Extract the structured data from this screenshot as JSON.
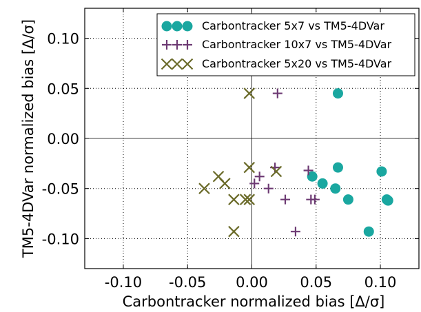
{
  "chart_data": {
    "type": "scatter",
    "xlabel": "Carbontracker normalized bias [Δ/σ]",
    "ylabel": "TM5-4DVar normalized bias [Δ/σ]",
    "xlim": [
      -0.13,
      0.13
    ],
    "ylim": [
      -0.13,
      0.13
    ],
    "xticks": [
      -0.1,
      -0.05,
      0.0,
      0.05,
      0.1
    ],
    "yticks": [
      0.1,
      0.05,
      0.0,
      -0.05,
      -0.1
    ],
    "xtick_labels": [
      "-0.10",
      "-0.05",
      "0.00",
      "0.05",
      "0.10"
    ],
    "ytick_labels": [
      "0.10",
      "0.05",
      "0.00",
      "-0.05",
      "-0.10"
    ],
    "grid": true,
    "zero_lines": true,
    "legend_position": "top-right",
    "series": [
      {
        "name": "Carbontracker  5x7 vs TM5-4DVar",
        "marker": "circle",
        "color": "#1aa7a0",
        "points": [
          [
            0.067,
            0.045
          ],
          [
            0.067,
            -0.029
          ],
          [
            0.101,
            -0.033
          ],
          [
            0.047,
            -0.038
          ],
          [
            0.055,
            -0.045
          ],
          [
            0.065,
            -0.05
          ],
          [
            0.075,
            -0.061
          ],
          [
            0.105,
            -0.061
          ],
          [
            0.106,
            -0.062
          ],
          [
            0.091,
            -0.093
          ]
        ]
      },
      {
        "name": "Carbontracker 10x7 vs TM5-4DVar",
        "marker": "plus",
        "color": "#6d3a73",
        "points": [
          [
            0.02,
            0.045
          ],
          [
            0.018,
            -0.029
          ],
          [
            0.044,
            -0.032
          ],
          [
            0.006,
            -0.038
          ],
          [
            0.002,
            -0.045
          ],
          [
            0.013,
            -0.05
          ],
          [
            0.026,
            -0.061
          ],
          [
            0.046,
            -0.061
          ],
          [
            0.049,
            -0.061
          ],
          [
            0.034,
            -0.093
          ]
        ]
      },
      {
        "name": "Carbontracker 5x20 vs TM5-4DVar",
        "marker": "x",
        "color": "#6b6b2a",
        "points": [
          [
            -0.002,
            0.045
          ],
          [
            -0.002,
            -0.029
          ],
          [
            0.019,
            -0.033
          ],
          [
            -0.026,
            -0.038
          ],
          [
            -0.021,
            -0.045
          ],
          [
            -0.037,
            -0.05
          ],
          [
            -0.014,
            -0.061
          ],
          [
            -0.005,
            -0.061
          ],
          [
            -0.002,
            -0.061
          ],
          [
            -0.014,
            -0.093
          ]
        ]
      }
    ]
  }
}
